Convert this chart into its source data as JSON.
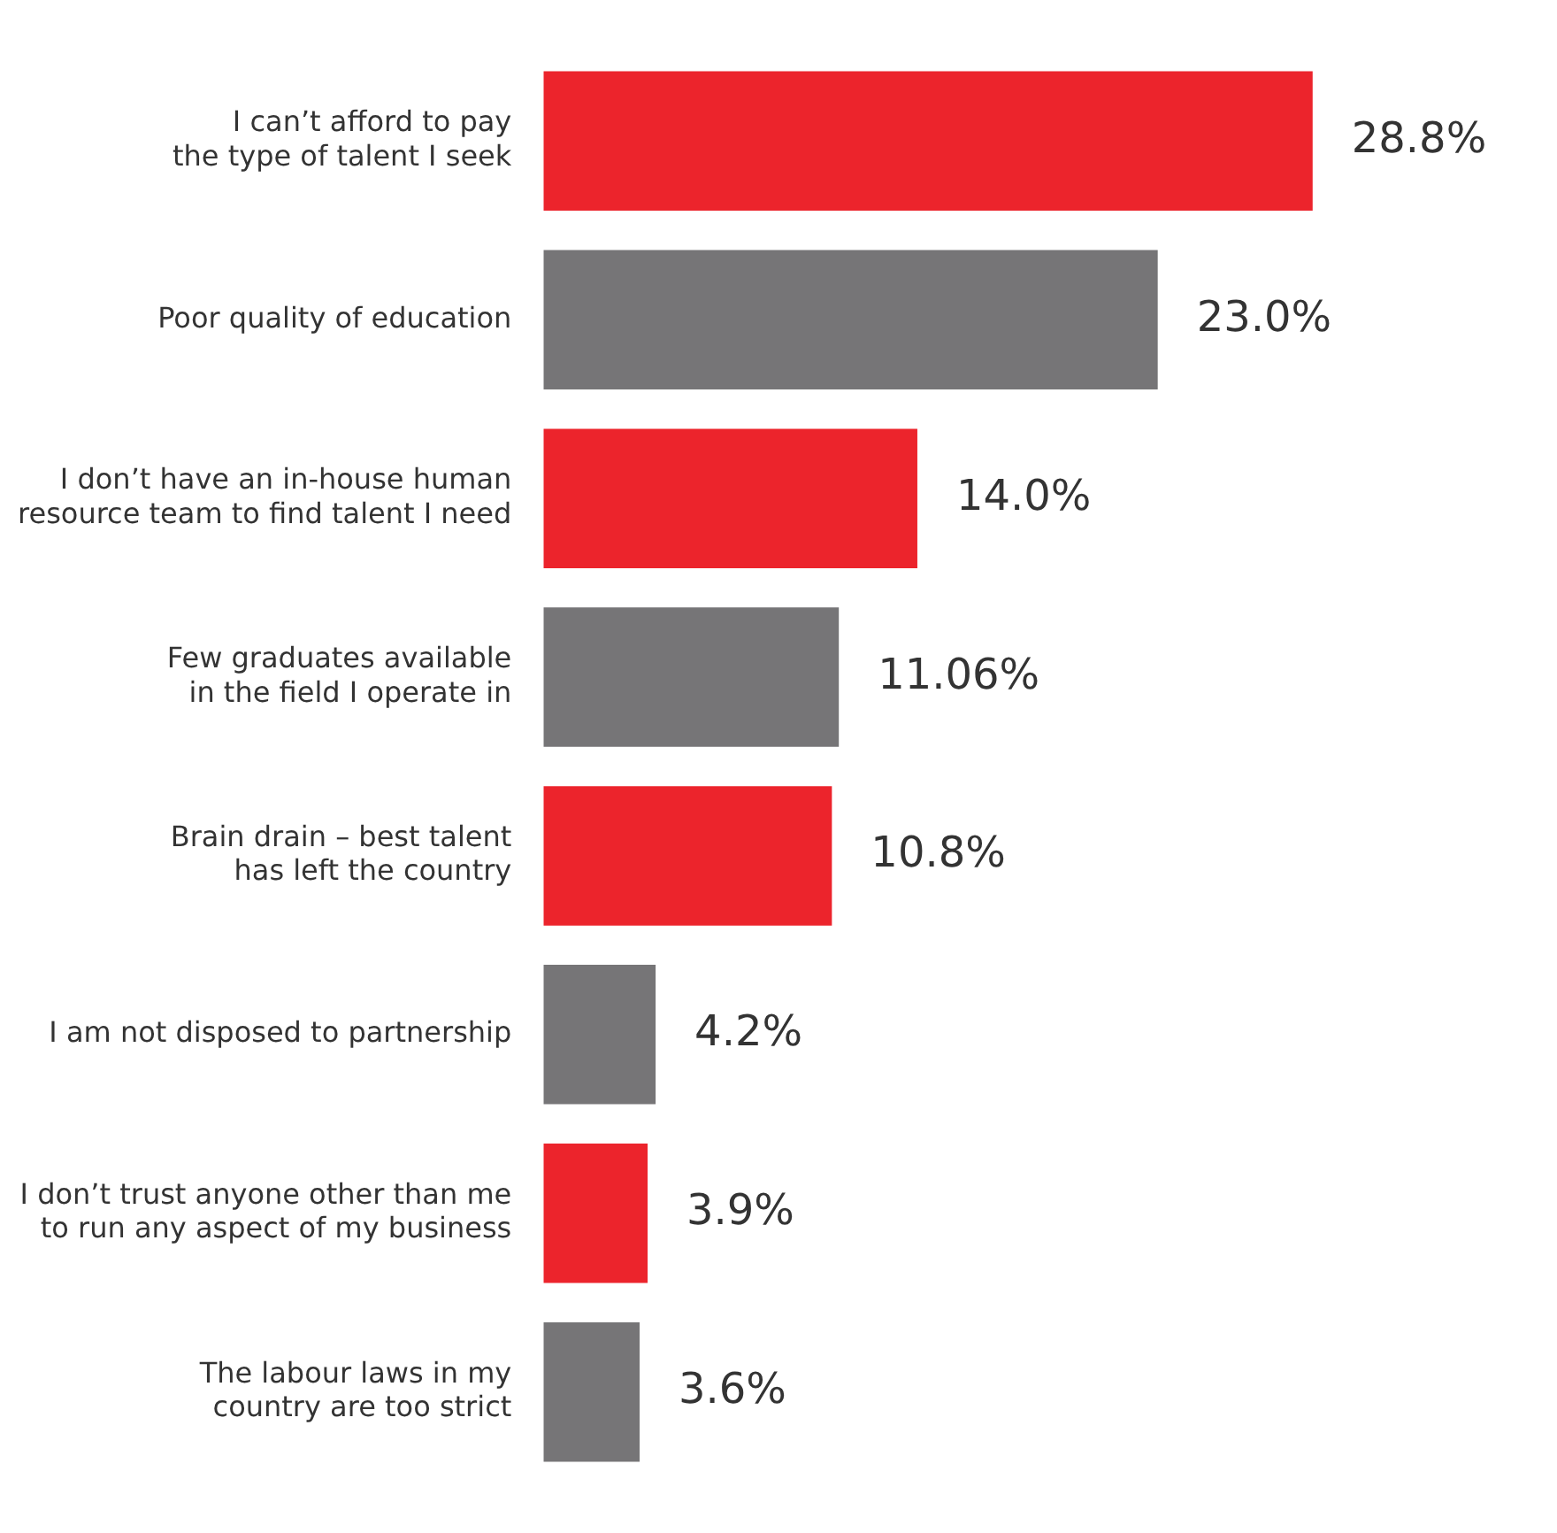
{
  "chart_data": {
    "type": "bar",
    "orientation": "horizontal",
    "categories": [
      "I can’t afford to pay\nthe type of talent I seek",
      "Poor quality of education",
      "I don’t have an in-house human\nresource team to find talent I need",
      "Few graduates available\nin the field I operate in",
      "Brain drain – best talent\nhas left the country",
      "I am not disposed to partnership",
      "I don’t trust anyone other than me\nto run any aspect of my business",
      "The labour laws in my\ncountry are too strict"
    ],
    "values": [
      28.8,
      23.0,
      14.0,
      11.06,
      10.8,
      4.2,
      3.9,
      3.6
    ],
    "colors": [
      "#ec242c",
      "#767577",
      "#ec242c",
      "#767577",
      "#ec242c",
      "#767577",
      "#ec242c",
      "#767577"
    ],
    "value_labels": [
      "28.8%",
      "23.0%",
      "14.0%",
      "11.06%",
      "10.8%",
      "4.2%",
      "3.9%",
      "3.6%"
    ],
    "legend": false
  }
}
